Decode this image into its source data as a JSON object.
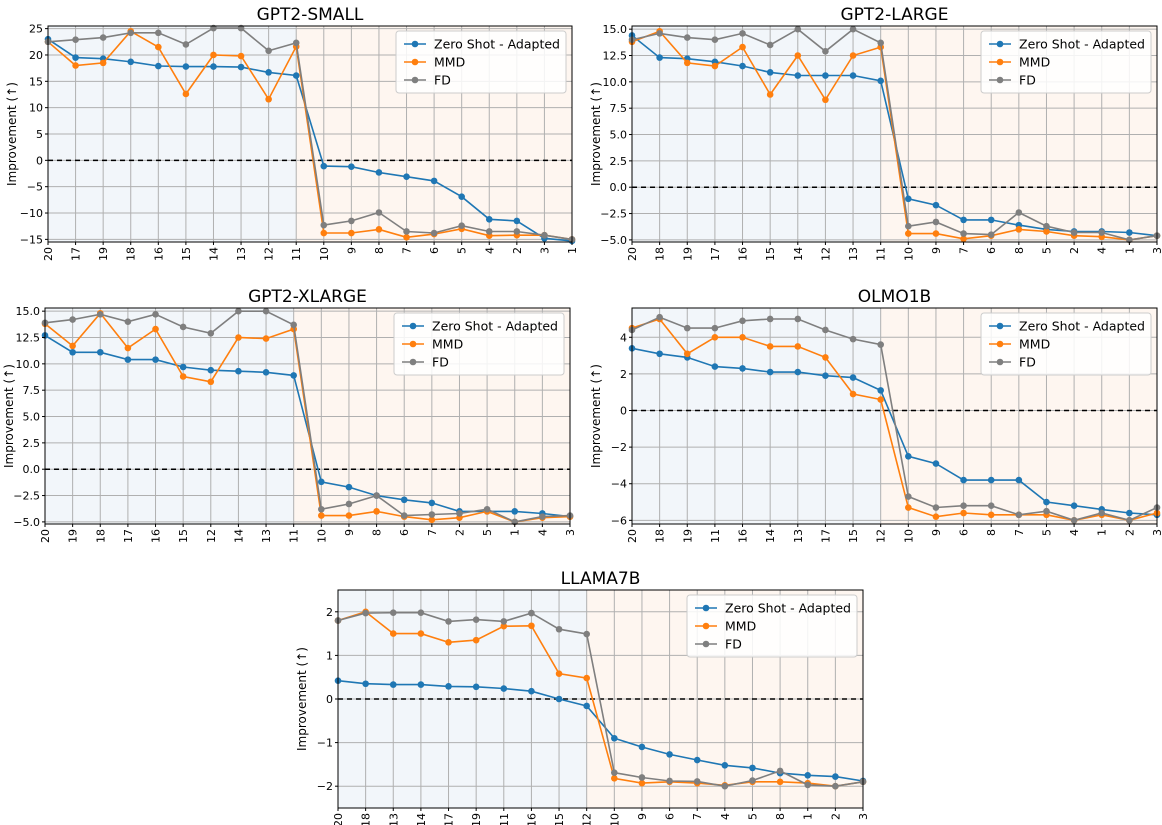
{
  "colors": {
    "zero_shot": "#1f77b4",
    "mmd": "#ff7f0e",
    "fd": "#7f7f7f",
    "left_region": "#f2f6fa",
    "right_region": "#fef6f0",
    "zero_line": "#000000"
  },
  "chart_data": [
    {
      "type": "line",
      "title": "GPT2-SMALL",
      "ylabel": "Improvement (↑)",
      "xlabel": "",
      "categories": [
        "20",
        "17",
        "19",
        "18",
        "16",
        "15",
        "14",
        "13",
        "12",
        "11",
        "10",
        "9",
        "8",
        "7",
        "6",
        "5",
        "4",
        "2",
        "3",
        "1"
      ],
      "split_after_index": 9,
      "ylim": [
        -15.5,
        25.5
      ],
      "yticks": [
        -15,
        -10,
        -5,
        0,
        5,
        10,
        15,
        20,
        25
      ],
      "ytick_labels": [
        "−15",
        "−10",
        "−5",
        "0",
        "5",
        "10",
        "15",
        "20",
        "25"
      ],
      "grid": true,
      "legend": "top-right",
      "series": [
        {
          "name": "Zero Shot - Adapted",
          "color_key": "zero_shot",
          "values": [
            23.0,
            19.5,
            19.3,
            18.7,
            17.9,
            17.8,
            17.8,
            17.7,
            16.7,
            16.1,
            -1.1,
            -1.2,
            -2.3,
            -3.1,
            -3.9,
            -6.9,
            -11.2,
            -11.5,
            -14.8,
            -15.3
          ]
        },
        {
          "name": "MMD",
          "color_key": "mmd",
          "values": [
            22.5,
            18.0,
            18.5,
            24.5,
            21.5,
            12.6,
            20.0,
            19.8,
            11.6,
            21.6,
            -13.8,
            -13.8,
            -13.1,
            -14.6,
            -14.0,
            -13.0,
            -14.3,
            -14.2,
            -14.2,
            -15.0
          ]
        },
        {
          "name": "FD",
          "color_key": "fd",
          "values": [
            22.5,
            22.9,
            23.3,
            24.2,
            24.2,
            22.0,
            25.1,
            25.1,
            20.8,
            22.3,
            -12.3,
            -11.5,
            -9.9,
            -13.5,
            -13.8,
            -12.4,
            -13.5,
            -13.5,
            -14.2,
            -15.0
          ]
        }
      ]
    },
    {
      "type": "line",
      "title": "GPT2-LARGE",
      "ylabel": "Improvement (↑)",
      "xlabel": "",
      "categories": [
        "20",
        "18",
        "19",
        "17",
        "16",
        "15",
        "14",
        "12",
        "13",
        "11",
        "10",
        "9",
        "7",
        "6",
        "8",
        "5",
        "2",
        "4",
        "1",
        "3"
      ],
      "split_after_index": 9,
      "ylim": [
        -5.2,
        15.3
      ],
      "yticks": [
        -5,
        -2.5,
        0,
        2.5,
        5,
        7.5,
        10,
        12.5,
        15
      ],
      "ytick_labels": [
        "−5.0",
        "−2.5",
        "0.0",
        "2.5",
        "5.0",
        "7.5",
        "10.0",
        "12.5",
        "15.0"
      ],
      "grid": true,
      "legend": "top-right",
      "series": [
        {
          "name": "Zero Shot - Adapted",
          "color_key": "zero_shot",
          "values": [
            14.4,
            12.3,
            12.2,
            11.9,
            11.5,
            10.9,
            10.6,
            10.6,
            10.6,
            10.1,
            -1.1,
            -1.7,
            -3.1,
            -3.1,
            -3.6,
            -4.0,
            -4.2,
            -4.2,
            -4.3,
            -4.6
          ]
        },
        {
          "name": "MMD",
          "color_key": "mmd",
          "values": [
            13.8,
            14.8,
            11.8,
            11.5,
            13.3,
            8.8,
            12.5,
            8.3,
            12.5,
            13.3,
            -4.4,
            -4.4,
            -4.9,
            -4.6,
            -4.0,
            -4.2,
            -4.6,
            -4.7,
            -5.0,
            -4.6
          ]
        },
        {
          "name": "FD",
          "color_key": "fd",
          "values": [
            14.0,
            14.6,
            14.2,
            14.0,
            14.6,
            13.5,
            15.0,
            12.9,
            15.0,
            13.7,
            -3.7,
            -3.3,
            -4.4,
            -4.5,
            -2.4,
            -3.7,
            -4.3,
            -4.3,
            -5.0,
            -4.6
          ]
        }
      ]
    },
    {
      "type": "line",
      "title": "GPT2-XLARGE",
      "ylabel": "Improvement (↑)",
      "xlabel": "",
      "categories": [
        "20",
        "19",
        "18",
        "17",
        "16",
        "15",
        "12",
        "14",
        "13",
        "11",
        "10",
        "9",
        "8",
        "6",
        "7",
        "2",
        "5",
        "1",
        "4",
        "3"
      ],
      "split_after_index": 9,
      "ylim": [
        -5.2,
        15.3
      ],
      "yticks": [
        -5,
        -2.5,
        0,
        2.5,
        5,
        7.5,
        10,
        12.5,
        15
      ],
      "ytick_labels": [
        "−5.0",
        "−2.5",
        "0.0",
        "2.5",
        "5.0",
        "7.5",
        "10.0",
        "12.5",
        "15.0"
      ],
      "grid": true,
      "legend": "top-right",
      "series": [
        {
          "name": "Zero Shot - Adapted",
          "color_key": "zero_shot",
          "values": [
            12.7,
            11.1,
            11.1,
            10.4,
            10.4,
            9.7,
            9.4,
            9.3,
            9.2,
            8.9,
            -1.2,
            -1.7,
            -2.5,
            -2.9,
            -3.2,
            -4.0,
            -4.0,
            -4.0,
            -4.2,
            -4.5
          ]
        },
        {
          "name": "MMD",
          "color_key": "mmd",
          "values": [
            13.8,
            11.7,
            14.8,
            11.5,
            13.3,
            8.8,
            8.3,
            12.5,
            12.4,
            13.3,
            -4.4,
            -4.4,
            -4.0,
            -4.5,
            -4.8,
            -4.6,
            -4.0,
            -5.0,
            -4.6,
            -4.5
          ]
        },
        {
          "name": "FD",
          "color_key": "fd",
          "values": [
            13.9,
            14.2,
            14.7,
            14.0,
            14.7,
            13.5,
            12.9,
            15.0,
            15.0,
            13.7,
            -3.8,
            -3.3,
            -2.5,
            -4.4,
            -4.3,
            -4.2,
            -3.8,
            -5.0,
            -4.5,
            -4.4
          ]
        }
      ]
    },
    {
      "type": "line",
      "title": "OLMO1B",
      "ylabel": "Improvement (↑)",
      "xlabel": "",
      "categories": [
        "20",
        "18",
        "19",
        "11",
        "16",
        "14",
        "13",
        "17",
        "15",
        "12",
        "10",
        "9",
        "6",
        "8",
        "7",
        "5",
        "4",
        "1",
        "2",
        "3"
      ],
      "split_after_index": 9,
      "ylim": [
        -6.2,
        5.6
      ],
      "yticks": [
        -6,
        -4,
        -2,
        0,
        2,
        4
      ],
      "ytick_labels": [
        "−6",
        "−4",
        "−2",
        "0",
        "2",
        "4"
      ],
      "grid": true,
      "legend": "top-right",
      "series": [
        {
          "name": "Zero Shot - Adapted",
          "color_key": "zero_shot",
          "values": [
            3.4,
            3.1,
            2.9,
            2.4,
            2.3,
            2.1,
            2.1,
            1.9,
            1.8,
            1.1,
            -2.5,
            -2.9,
            -3.8,
            -3.8,
            -3.8,
            -5.0,
            -5.2,
            -5.4,
            -5.6,
            -5.7
          ]
        },
        {
          "name": "MMD",
          "color_key": "mmd",
          "values": [
            4.5,
            5.0,
            3.1,
            4.0,
            4.0,
            3.5,
            3.5,
            2.9,
            0.9,
            0.6,
            -5.3,
            -5.8,
            -5.6,
            -5.7,
            -5.7,
            -5.7,
            -6.0,
            -5.7,
            -6.0,
            -5.6
          ]
        },
        {
          "name": "FD",
          "color_key": "fd",
          "values": [
            4.4,
            5.1,
            4.5,
            4.5,
            4.9,
            5.0,
            5.0,
            4.4,
            3.9,
            3.6,
            -4.7,
            -5.3,
            -5.2,
            -5.2,
            -5.7,
            -5.5,
            -6.0,
            -5.6,
            -6.0,
            -5.3
          ]
        }
      ]
    },
    {
      "type": "line",
      "title": "LLAMA7B",
      "ylabel": "Improvement (↑)",
      "xlabel": "",
      "categories": [
        "20",
        "18",
        "13",
        "14",
        "17",
        "19",
        "11",
        "16",
        "15",
        "12",
        "10",
        "9",
        "6",
        "7",
        "4",
        "5",
        "8",
        "1",
        "2",
        "3"
      ],
      "split_after_index": 9,
      "ylim": [
        -2.5,
        2.5
      ],
      "yticks": [
        -2,
        -1,
        0,
        1,
        2
      ],
      "ytick_labels": [
        "−2",
        "−1",
        "0",
        "1",
        "2"
      ],
      "grid": true,
      "legend": "top-right",
      "series": [
        {
          "name": "Zero Shot - Adapted",
          "color_key": "zero_shot",
          "values": [
            0.42,
            0.35,
            0.33,
            0.33,
            0.29,
            0.28,
            0.24,
            0.18,
            0.0,
            -0.16,
            -0.9,
            -1.1,
            -1.27,
            -1.4,
            -1.52,
            -1.58,
            -1.7,
            -1.75,
            -1.78,
            -1.88
          ]
        },
        {
          "name": "MMD",
          "color_key": "mmd",
          "values": [
            1.8,
            2.0,
            1.5,
            1.5,
            1.3,
            1.35,
            1.67,
            1.68,
            0.58,
            0.48,
            -1.82,
            -1.93,
            -1.9,
            -1.93,
            -1.98,
            -1.9,
            -1.9,
            -1.93,
            -2.0,
            -1.9
          ]
        },
        {
          "name": "FD",
          "color_key": "fd",
          "values": [
            1.8,
            1.97,
            1.98,
            1.98,
            1.78,
            1.82,
            1.78,
            1.97,
            1.6,
            1.49,
            -1.69,
            -1.8,
            -1.88,
            -1.89,
            -2.0,
            -1.87,
            -1.65,
            -1.97,
            -2.0,
            -1.9
          ]
        }
      ]
    }
  ]
}
